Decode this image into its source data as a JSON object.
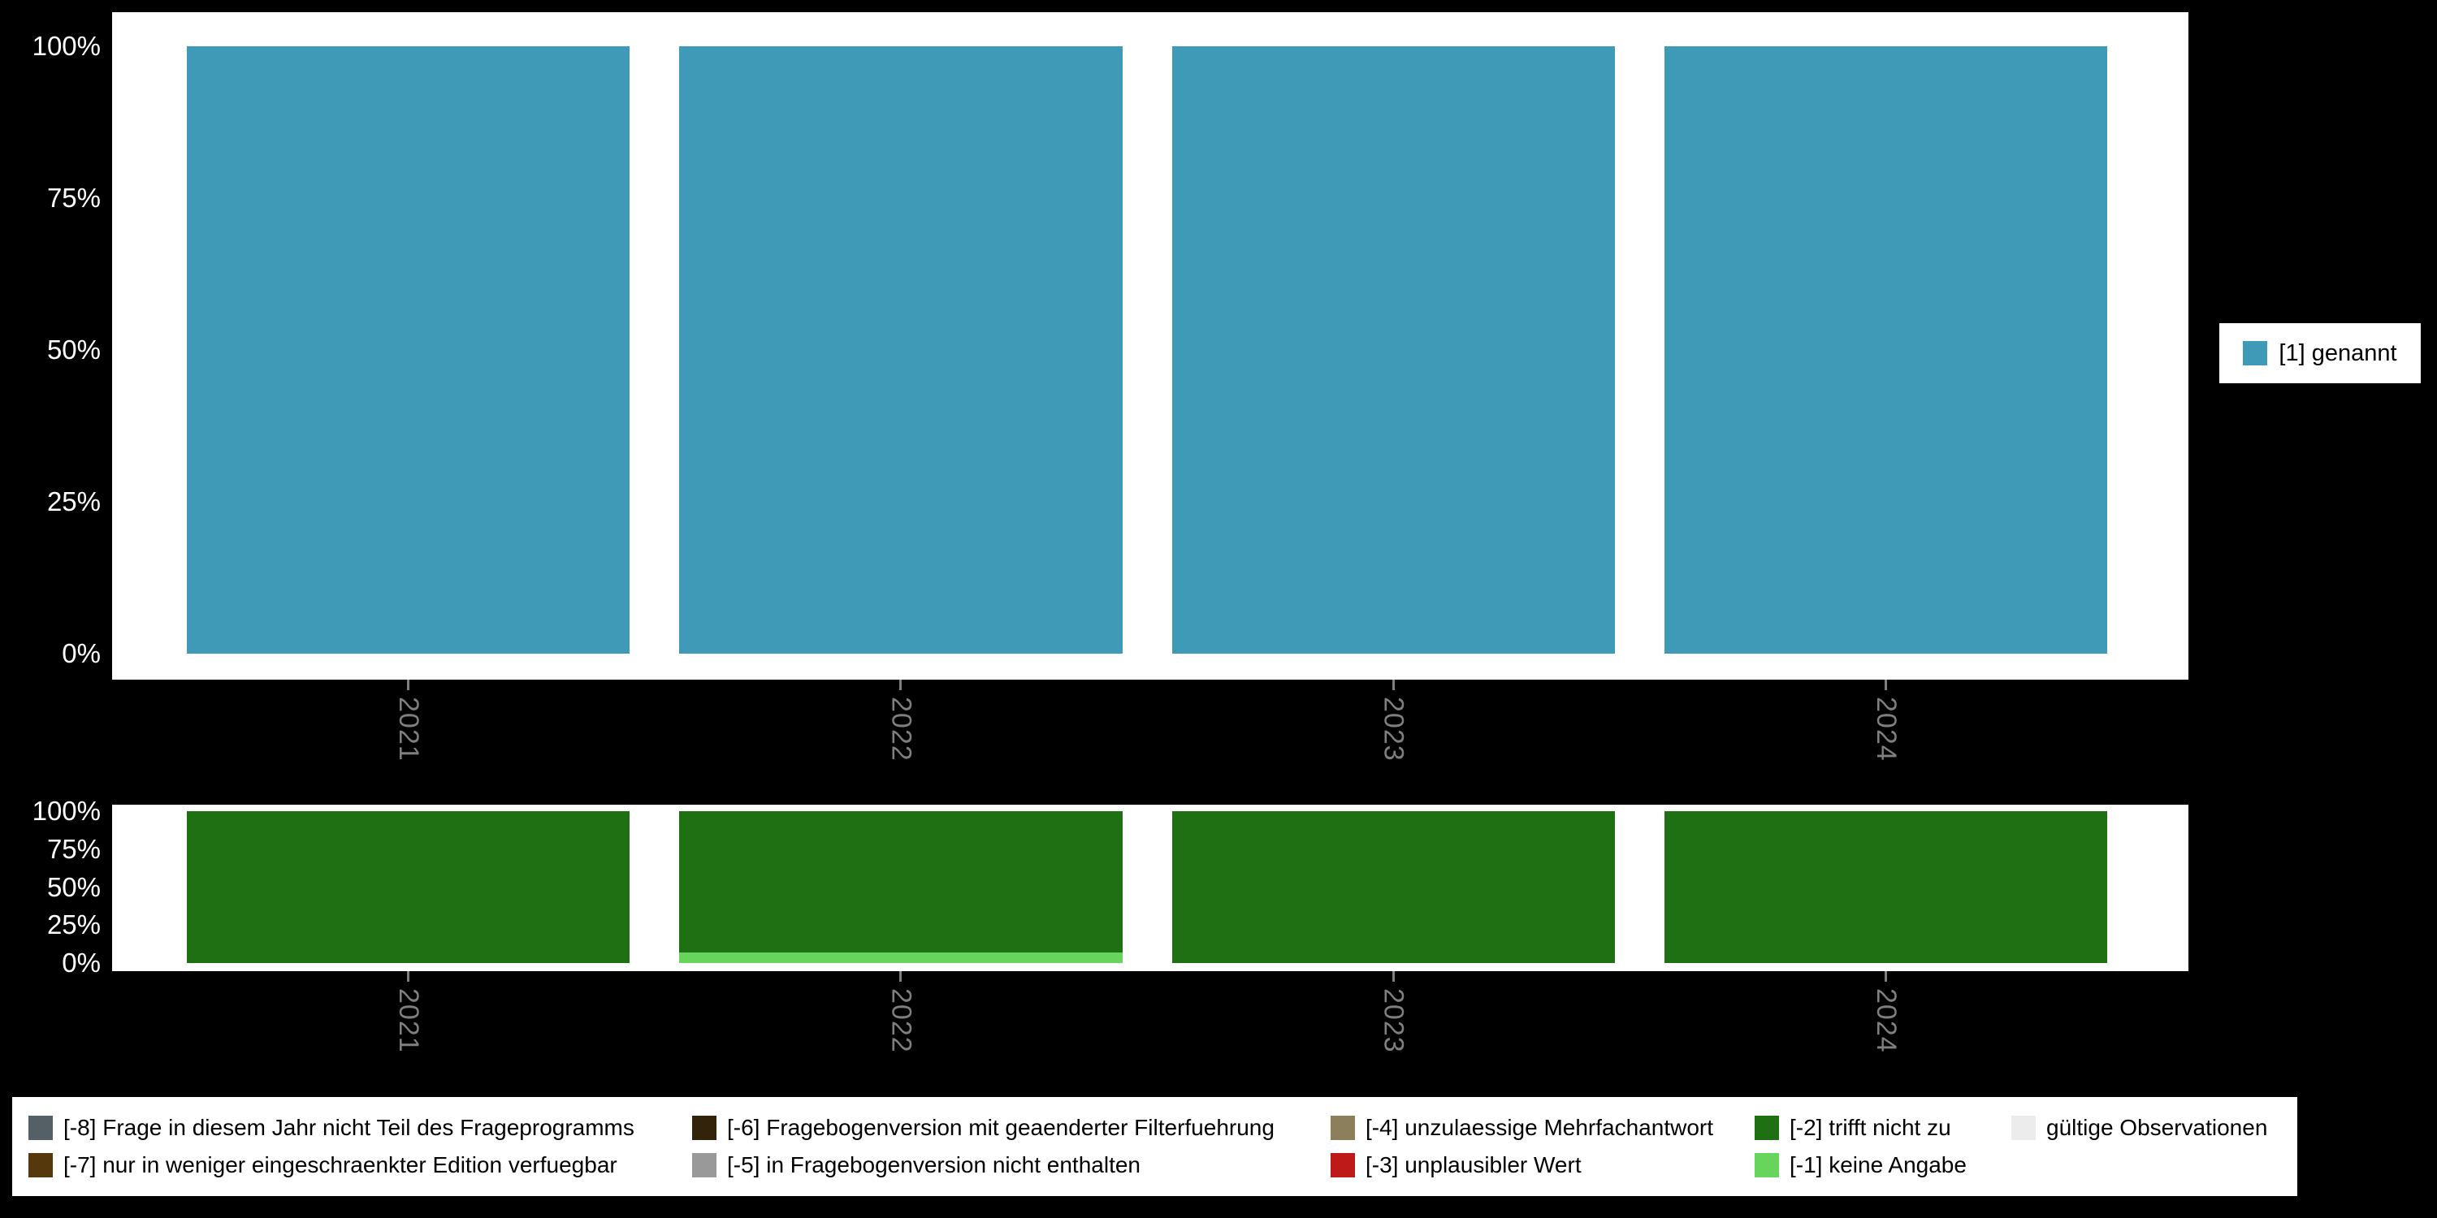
{
  "colors": {
    "background": "#000000",
    "plot_background": "#ffffff",
    "axis_text": "#ffffff",
    "x_label_text": "#7f7f7f",
    "legend_background": "#ffffff",
    "legend_text": "#000000"
  },
  "chart_data": [
    {
      "type": "bar",
      "stacked": true,
      "orientation": "vertical",
      "unit": "percent",
      "title": "",
      "xlabel": "",
      "ylabel": "",
      "categories": [
        "2021",
        "2022",
        "2023",
        "2024"
      ],
      "series": [
        {
          "name": "[1] genannt",
          "color": "#3e9ab6",
          "values": [
            100,
            100,
            100,
            100
          ]
        }
      ],
      "yticks": [
        "100%",
        "75%",
        "50%",
        "25%",
        "0%"
      ],
      "ylim": [
        0,
        100
      ],
      "grid": false,
      "legend_position": "right"
    },
    {
      "type": "bar",
      "stacked": true,
      "orientation": "vertical",
      "unit": "percent",
      "title": "",
      "xlabel": "",
      "ylabel": "",
      "categories": [
        "2021",
        "2022",
        "2023",
        "2024"
      ],
      "series": [
        {
          "name": "[-2] trifft nicht zu",
          "color": "#1e7013",
          "values": [
            100,
            93,
            100,
            100
          ]
        },
        {
          "name": "[-1] keine Angabe",
          "color": "#67d45c",
          "values": [
            0,
            7,
            0,
            0
          ]
        }
      ],
      "yticks": [
        "100%",
        "75%",
        "50%",
        "25%",
        "0%"
      ],
      "ylim": [
        0,
        100
      ],
      "grid": false,
      "legend_position": "bottom"
    }
  ],
  "legend_right": {
    "items": [
      {
        "label": "[1] genannt",
        "color": "#3e9ab6"
      }
    ]
  },
  "legend_bottom": {
    "rows": [
      [
        {
          "label": "[-8] Frage in diesem Jahr nicht Teil des Frageprogramms",
          "color": "#545f66"
        },
        {
          "label": "[-6] Fragebogenversion mit geaenderter Filterfuehrung",
          "color": "#33230a"
        },
        {
          "label": "[-4] unzulaessige Mehrfachantwort",
          "color": "#8c7f5c"
        },
        {
          "label": "[-2] trifft nicht zu",
          "color": "#1e7013"
        },
        {
          "label": "gültige Observationen",
          "color": "#ececec"
        }
      ],
      [
        {
          "label": "[-7] nur in weniger eingeschraenkter Edition verfuegbar",
          "color": "#55380b"
        },
        {
          "label": "[-5] in Fragebogenversion nicht enthalten",
          "color": "#999999"
        },
        {
          "label": "[-3] unplausibler Wert",
          "color": "#bf1a1a"
        },
        {
          "label": "[-1] keine Angabe",
          "color": "#67d45c"
        }
      ]
    ]
  }
}
